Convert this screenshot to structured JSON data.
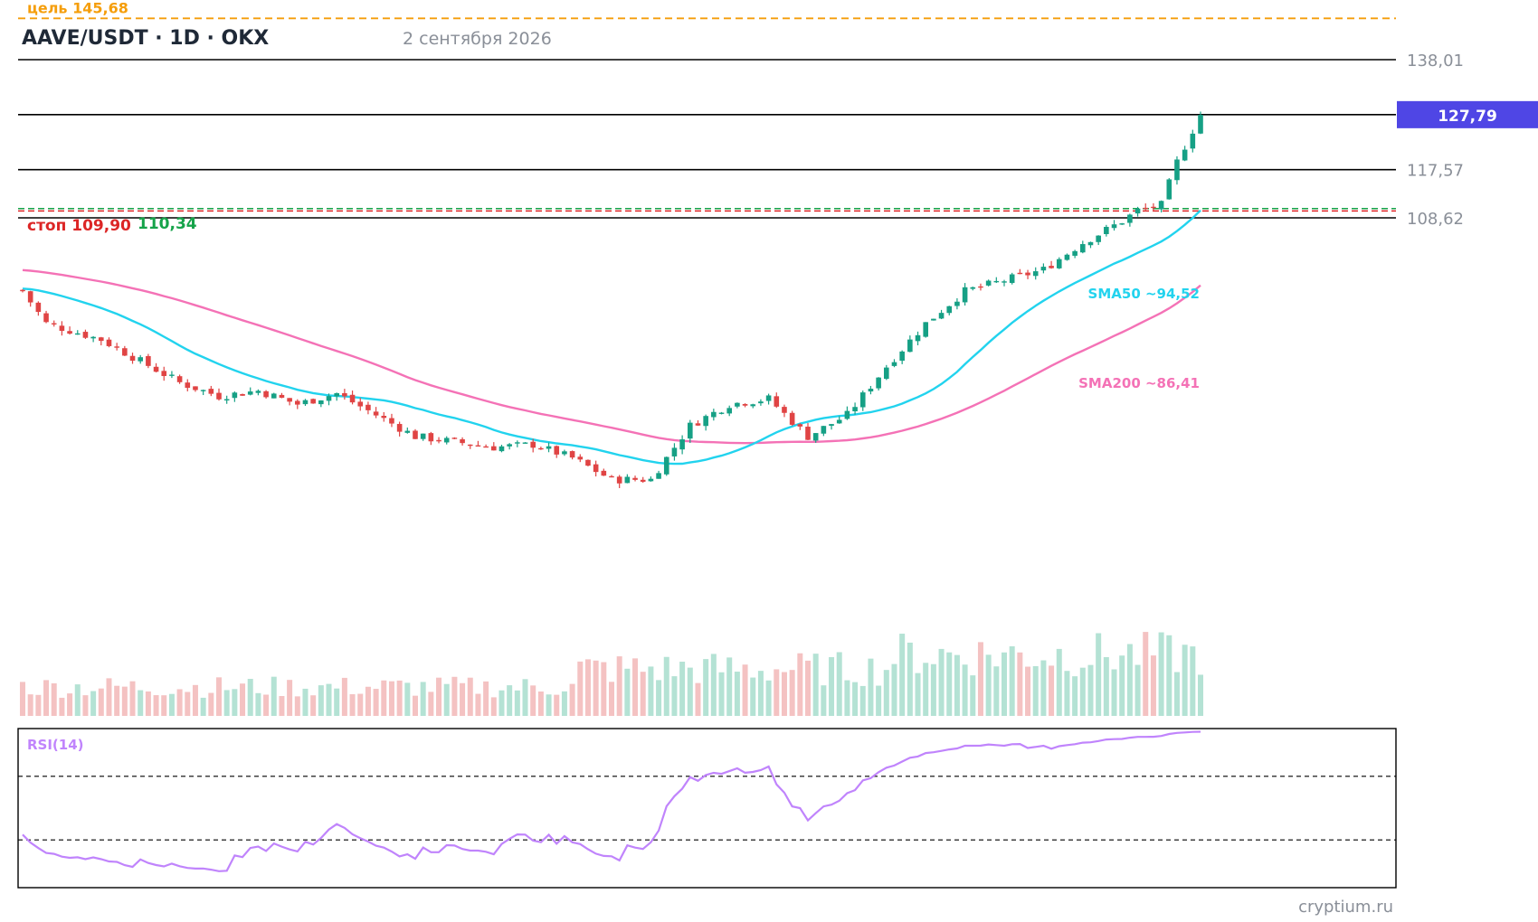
{
  "header": {
    "symbol": "AAVE/USDT · 1D · OKX",
    "date": "2 сентября 2026"
  },
  "watermark": "cryptium.ru",
  "chart_data": {
    "type": "candlestick",
    "price_range": [
      50,
      148
    ],
    "levels": [
      {
        "value": 138.01,
        "label": "138,01",
        "color": "#000000"
      },
      {
        "value": 127.79,
        "label": "127,79",
        "color": "#000000"
      },
      {
        "value": 117.57,
        "label": "117,57",
        "color": "#000000"
      },
      {
        "value": 108.62,
        "label": "108,62",
        "color": "#000000"
      }
    ],
    "current_price": {
      "value": 127.79,
      "label": "127,79",
      "color": "#4f46e5"
    },
    "target": {
      "value": 145.68,
      "label": "цель 145,68",
      "color": "#f59e0b"
    },
    "stop": {
      "value": 109.9,
      "label": "стоп 109,90",
      "color": "#dc2626"
    },
    "entry": {
      "value": 110.34,
      "label": "110,34",
      "color": "#16a34a"
    },
    "sma50": {
      "label": "SMA50 ~94,52",
      "last": 94.52,
      "color": "#22d3ee"
    },
    "sma200": {
      "label": "SMA200 ~86,41",
      "last": 86.41,
      "color": "#f472b6"
    },
    "rsi": {
      "label": "RSI(14)",
      "color": "#c084fc",
      "range": [
        0,
        100
      ],
      "upper": 70,
      "lower": 30
    },
    "colors": {
      "up": "#16a085",
      "down": "#e04444",
      "vol_up": "#b4e2d4",
      "vol_down": "#f4c2c2"
    }
  }
}
